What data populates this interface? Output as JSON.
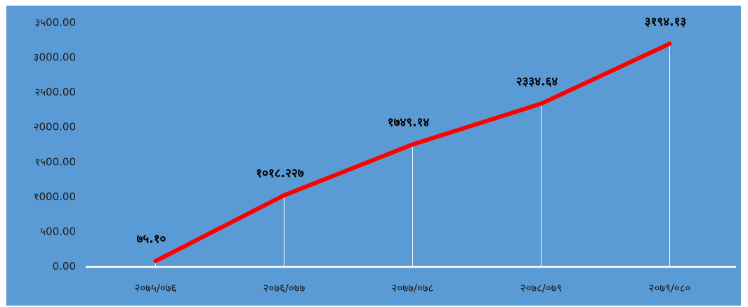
{
  "chart_data": {
    "type": "line",
    "categories": [
      "२०७५/०७६",
      "२०७६/०७७",
      "२०७७/०७८",
      "२०७८/०७९",
      "२०७९/०८०"
    ],
    "series": [
      {
        "values": [
          75.1,
          1018.227,
          1749.14,
          2334.64,
          3194.13
        ],
        "data_labels": [
          "७५.१०",
          "१०१८.२२७",
          "१७४९.१४",
          "२३३४.६४",
          "३१९४.१३"
        ],
        "color": "#ff0000"
      }
    ],
    "y_ticks": [
      0,
      500,
      1000,
      1500,
      2000,
      2500,
      3000,
      3500
    ],
    "y_tick_labels": [
      "0.00",
      "५00.00",
      "१000.00",
      "१५00.00",
      "२000.00",
      "२५00.00",
      "३000.00",
      "३५00.00"
    ],
    "ylim": [
      0,
      3500
    ],
    "grid": false,
    "drop_lines": true,
    "background": "#5b9bd5",
    "title": "",
    "xlabel": "",
    "ylabel": ""
  }
}
